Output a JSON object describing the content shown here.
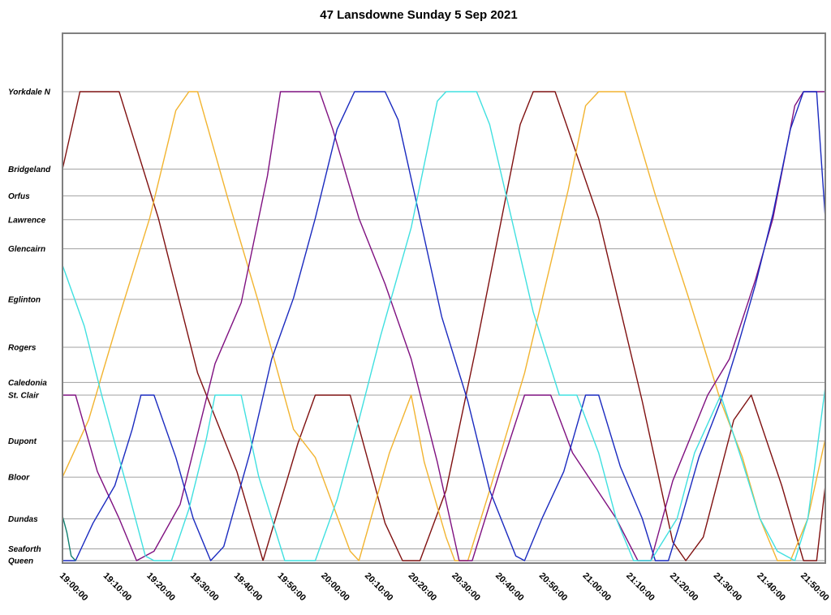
{
  "chart_data": {
    "type": "line",
    "title": "47 Lansdowne Sunday 5 Sep 2021",
    "xlabel": "",
    "ylabel": "",
    "x_range": [
      "19:00:00",
      "21:55:00"
    ],
    "x_ticks": [
      "19:00:00",
      "19:10:00",
      "19:20:00",
      "19:30:00",
      "19:40:00",
      "19:50:00",
      "20:00:00",
      "20:10:00",
      "20:20:00",
      "20:30:00",
      "20:40:00",
      "20:50:00",
      "21:00:00",
      "21:10:00",
      "21:20:00",
      "21:30:00",
      "21:40:00",
      "21:50:00"
    ],
    "y_axis": {
      "type": "category",
      "stops": [
        {
          "name": "Queen",
          "pos": 0
        },
        {
          "name": "Seaforth",
          "pos": 0.25
        },
        {
          "name": "Dundas",
          "pos": 0.89
        },
        {
          "name": "Bloor",
          "pos": 1.78
        },
        {
          "name": "Dupont",
          "pos": 2.55
        },
        {
          "name": "St. Clair",
          "pos": 3.53
        },
        {
          "name": "Caledonia",
          "pos": 3.8
        },
        {
          "name": "Rogers",
          "pos": 4.55
        },
        {
          "name": "Eglinton",
          "pos": 5.57
        },
        {
          "name": "Glencairn",
          "pos": 6.65
        },
        {
          "name": "Lawrence",
          "pos": 7.27
        },
        {
          "name": "Orfus",
          "pos": 7.78
        },
        {
          "name": "Bridgeland",
          "pos": 8.35
        },
        {
          "name": "Yorkdale N",
          "pos": 10
        }
      ]
    },
    "grid": true,
    "legend": "none",
    "series": [
      {
        "color": "#7f1010",
        "points": [
          [
            "19:00:00",
            8.35
          ],
          [
            "19:04:00",
            10
          ],
          [
            "19:13:00",
            10
          ],
          [
            "19:22:00",
            7.3
          ],
          [
            "19:31:00",
            4.0
          ],
          [
            "19:40:00",
            1.9
          ],
          [
            "19:46:00",
            0
          ]
        ]
      },
      {
        "color": "#7f1010",
        "points": [
          [
            "19:46:00",
            0
          ],
          [
            "19:54:00",
            2.5
          ],
          [
            "19:58:00",
            3.53
          ],
          [
            "20:06:00",
            3.53
          ],
          [
            "20:14:00",
            0.8
          ],
          [
            "20:18:00",
            0
          ],
          [
            "20:22:00",
            0
          ],
          [
            "20:28:00",
            1.5
          ],
          [
            "20:35:00",
            4.6
          ],
          [
            "20:45:00",
            9.3
          ],
          [
            "20:48:00",
            10
          ],
          [
            "20:53:00",
            10
          ],
          [
            "21:03:00",
            7.3
          ],
          [
            "21:13:00",
            3.4
          ],
          [
            "21:20:00",
            0.4
          ],
          [
            "21:23:00",
            0
          ],
          [
            "21:27:00",
            0.5
          ],
          [
            "21:34:00",
            3.0
          ],
          [
            "21:38:00",
            3.53
          ],
          [
            "21:45:00",
            1.6
          ],
          [
            "21:50:00",
            0
          ],
          [
            "21:53:00",
            0
          ],
          [
            "21:55:00",
            1.6
          ]
        ]
      },
      {
        "color": "#f2b430",
        "points": [
          [
            "19:00:00",
            1.78
          ],
          [
            "19:06:00",
            3.0
          ],
          [
            "19:13:00",
            5.2
          ],
          [
            "19:20:00",
            7.3
          ],
          [
            "19:26:00",
            9.6
          ],
          [
            "19:29:00",
            10
          ],
          [
            "19:31:00",
            10
          ],
          [
            "19:38:00",
            7.7
          ],
          [
            "19:45:00",
            5.5
          ],
          [
            "19:53:00",
            2.8
          ],
          [
            "19:58:00",
            2.2
          ],
          [
            "20:06:00",
            0.2
          ],
          [
            "20:08:00",
            0
          ],
          [
            "20:15:00",
            2.3
          ],
          [
            "20:20:00",
            3.53
          ],
          [
            "20:23:00",
            2.1
          ],
          [
            "20:28:00",
            0.5
          ],
          [
            "20:30:00",
            0
          ],
          [
            "20:33:00",
            0
          ],
          [
            "20:38:00",
            1.5
          ],
          [
            "20:46:00",
            4.0
          ],
          [
            "20:56:00",
            7.9
          ],
          [
            "21:00:00",
            9.7
          ],
          [
            "21:03:00",
            10
          ],
          [
            "21:09:00",
            10
          ],
          [
            "21:16:00",
            7.8
          ],
          [
            "21:24:00",
            5.5
          ],
          [
            "21:31:00",
            3.4
          ],
          [
            "21:36:00",
            2.2
          ],
          [
            "21:40:00",
            0.9
          ],
          [
            "21:44:00",
            0
          ],
          [
            "21:47:00",
            0
          ],
          [
            "21:51:00",
            0.9
          ],
          [
            "21:55:00",
            2.6
          ]
        ]
      },
      {
        "color": "#7f1080",
        "points": [
          [
            "19:00:00",
            3.53
          ],
          [
            "19:03:00",
            3.53
          ],
          [
            "19:08:00",
            1.9
          ],
          [
            "19:13:00",
            0.9
          ],
          [
            "19:17:00",
            0
          ],
          [
            "19:21:00",
            0.2
          ],
          [
            "19:27:00",
            1.2
          ],
          [
            "19:35:00",
            4.2
          ],
          [
            "19:41:00",
            5.5
          ],
          [
            "19:47:00",
            8.2
          ],
          [
            "19:50:00",
            10
          ],
          [
            "19:59:00",
            10
          ],
          [
            "20:02:00",
            9.2
          ],
          [
            "20:08:00",
            7.3
          ],
          [
            "20:14:00",
            5.9
          ],
          [
            "20:20:00",
            4.3
          ],
          [
            "20:26:00",
            2.1
          ],
          [
            "20:31:00",
            0
          ],
          [
            "20:34:00",
            0
          ],
          [
            "20:41:00",
            2.1
          ],
          [
            "20:46:00",
            3.53
          ],
          [
            "20:52:00",
            3.53
          ],
          [
            "20:57:00",
            2.3
          ],
          [
            "21:02:00",
            1.6
          ],
          [
            "21:07:00",
            0.9
          ],
          [
            "21:12:00",
            0
          ],
          [
            "21:15:00",
            0
          ],
          [
            "21:20:00",
            1.7
          ],
          [
            "21:28:00",
            3.53
          ],
          [
            "21:33:00",
            4.3
          ],
          [
            "21:39:00",
            6.0
          ],
          [
            "21:43:00",
            7.3
          ],
          [
            "21:48:00",
            9.7
          ],
          [
            "21:50:00",
            10
          ],
          [
            "21:55:00",
            10
          ]
        ]
      },
      {
        "color": "#1a2abf",
        "points": [
          [
            "19:00:00",
            0
          ],
          [
            "19:03:00",
            0
          ],
          [
            "19:07:00",
            0.8
          ],
          [
            "19:12:00",
            1.6
          ],
          [
            "19:16:00",
            2.8
          ],
          [
            "19:18:00",
            3.53
          ],
          [
            "19:21:00",
            3.53
          ],
          [
            "19:26:00",
            2.2
          ],
          [
            "19:30:00",
            0.9
          ],
          [
            "19:34:00",
            0
          ],
          [
            "19:37:00",
            0.3
          ],
          [
            "19:43:00",
            2.3
          ],
          [
            "19:48:00",
            4.3
          ],
          [
            "19:53:00",
            5.6
          ],
          [
            "19:58:00",
            7.3
          ],
          [
            "20:03:00",
            9.2
          ],
          [
            "20:07:00",
            10
          ],
          [
            "20:14:00",
            10
          ],
          [
            "20:17:00",
            9.4
          ],
          [
            "20:22:00",
            7.3
          ],
          [
            "20:27:00",
            5.2
          ],
          [
            "20:33:00",
            3.4
          ],
          [
            "20:38:00",
            1.5
          ],
          [
            "20:44:00",
            0.1
          ],
          [
            "20:46:00",
            0
          ],
          [
            "20:50:00",
            0.9
          ],
          [
            "20:55:00",
            1.9
          ],
          [
            "21:00:00",
            3.53
          ],
          [
            "21:03:00",
            3.53
          ],
          [
            "21:08:00",
            2.0
          ],
          [
            "21:13:00",
            0.9
          ],
          [
            "21:16:00",
            0
          ],
          [
            "21:19:00",
            0
          ],
          [
            "21:22:00",
            0.9
          ],
          [
            "21:26:00",
            2.2
          ],
          [
            "21:31:00",
            3.4
          ],
          [
            "21:35:00",
            4.6
          ],
          [
            "21:39:00",
            5.9
          ],
          [
            "21:43:00",
            7.4
          ],
          [
            "21:47:00",
            9.2
          ],
          [
            "21:50:00",
            10
          ],
          [
            "21:53:00",
            10
          ],
          [
            "21:55:00",
            7.3
          ]
        ]
      },
      {
        "color": "#40e0e0",
        "points": [
          [
            "19:00:00",
            6.3
          ],
          [
            "19:05:00",
            5.0
          ],
          [
            "19:09:00",
            3.53
          ],
          [
            "19:15:00",
            1.5
          ],
          [
            "19:19:00",
            0.1
          ],
          [
            "19:21:00",
            0
          ],
          [
            "19:25:00",
            0
          ],
          [
            "19:29:00",
            1.1
          ],
          [
            "19:33:00",
            2.6
          ],
          [
            "19:35:00",
            3.53
          ],
          [
            "19:41:00",
            3.53
          ],
          [
            "19:45:00",
            1.8
          ],
          [
            "19:48:00",
            0.9
          ],
          [
            "19:51:00",
            0
          ],
          [
            "19:58:00",
            0
          ],
          [
            "20:03:00",
            1.3
          ],
          [
            "20:08:00",
            3.0
          ],
          [
            "20:13:00",
            4.8
          ],
          [
            "20:20:00",
            7.1
          ],
          [
            "20:26:00",
            9.8
          ],
          [
            "20:28:00",
            10
          ],
          [
            "20:35:00",
            10
          ],
          [
            "20:38:00",
            9.3
          ],
          [
            "20:43:00",
            7.3
          ],
          [
            "20:48:00",
            5.3
          ],
          [
            "20:54:00",
            3.53
          ],
          [
            "20:58:00",
            3.53
          ],
          [
            "21:03:00",
            2.3
          ],
          [
            "21:07:00",
            0.9
          ],
          [
            "21:11:00",
            0
          ],
          [
            "21:15:00",
            0
          ],
          [
            "21:21:00",
            0.9
          ],
          [
            "21:25:00",
            2.3
          ],
          [
            "21:31:00",
            3.53
          ],
          [
            "21:36:00",
            2.1
          ],
          [
            "21:40:00",
            0.9
          ],
          [
            "21:44:00",
            0.2
          ],
          [
            "21:48:00",
            0
          ],
          [
            "21:51:00",
            0.9
          ],
          [
            "21:55:00",
            3.7
          ]
        ]
      },
      {
        "color": "#108070",
        "points": [
          [
            "19:00:00",
            0.95
          ],
          [
            "19:01:00",
            0.6
          ],
          [
            "19:02:00",
            0.1
          ],
          [
            "19:03:00",
            0
          ]
        ]
      }
    ]
  }
}
